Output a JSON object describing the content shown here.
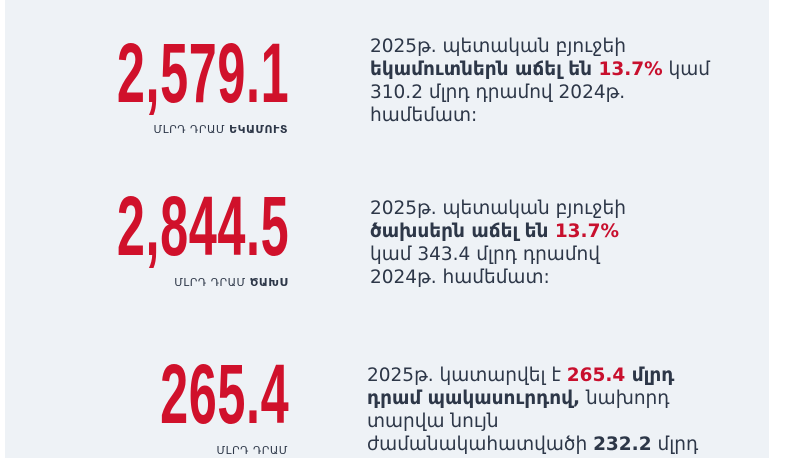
{
  "colors": {
    "accent": "#d0112b",
    "text": "#2d3748",
    "background": "#eef2f6"
  },
  "blocks": [
    {
      "value": "2,579.1",
      "unit": "ՄԼՐԴ ԴՐԱՄ",
      "unit_bold": "ԵԿԱՄՈՒՏ",
      "text": {
        "p1": "2025թ. պետական բյուջեի ",
        "b1": "եկամուտներն աճել են ",
        "r1": "13.7%",
        "p2": " կամ 310.2 մլրդ դրամով 2024թ. համեմատ:"
      }
    },
    {
      "value": "2,844.5",
      "unit": "ՄԼՐԴ ԴՐԱՄ",
      "unit_bold": "ԾԱԽՍ",
      "text": {
        "p1": "2025թ. պետական բյուջեի ",
        "b1": "ծախսերն աճել են ",
        "r1": "13.7%",
        "p2": " կամ 343.4 մլրդ դրամով 2024թ. համեմատ:"
      }
    },
    {
      "value": "265.4",
      "unit": "ՄԼՐԴ ԴՐԱՄ",
      "text": {
        "p1": "2025թ. կատարվել է  ",
        "r1": "265.4",
        "b1": " մլրդ դրամ պակասուրդով,",
        "p2": " նախորդ տարվա նույն ժամանակահատվածի ",
        "b2": "232.2",
        "p3": " մլրդ"
      }
    }
  ]
}
